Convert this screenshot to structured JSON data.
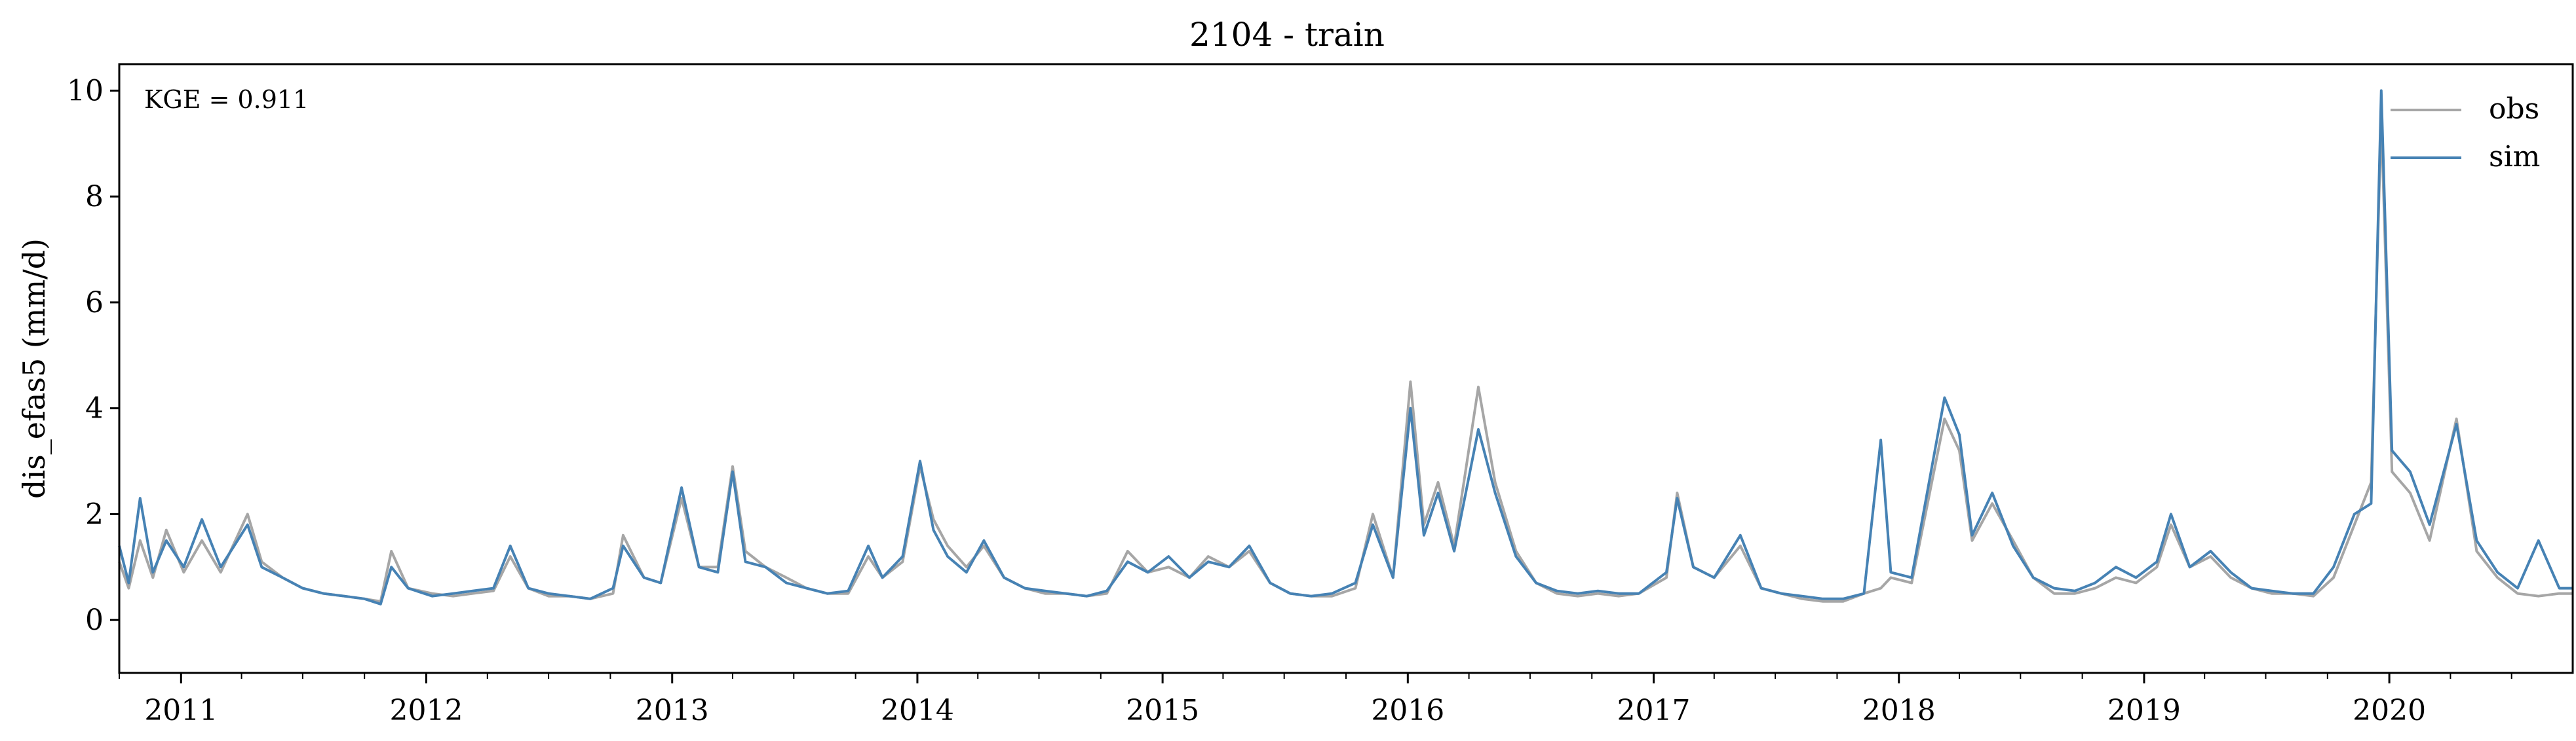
{
  "chart_data": {
    "type": "line",
    "title": "2104 - train",
    "ylabel": "dis_efas5 (mm/d)",
    "xlabel": "",
    "xlim": [
      "2010-10-01",
      "2020-09-30"
    ],
    "ylim": [
      -1,
      10.5
    ],
    "yticks": [
      0,
      2,
      4,
      6,
      8,
      10
    ],
    "yticklabels": [
      "0",
      "2",
      "4",
      "6",
      "8",
      "10"
    ],
    "xticks": [
      "2011-01-01",
      "2012-01-01",
      "2013-01-01",
      "2014-01-01",
      "2015-01-01",
      "2016-01-01",
      "2017-01-01",
      "2018-01-01",
      "2019-01-01",
      "2020-01-01"
    ],
    "xticklabels": [
      "2011",
      "2012",
      "2013",
      "2014",
      "2015",
      "2016",
      "2017",
      "2018",
      "2019",
      "2020"
    ],
    "grid": false,
    "legend_position": "top-right",
    "annotation": "KGE = 0.911",
    "series": [
      {
        "name": "obs",
        "color": "#a6a6a6",
        "points": [
          [
            "2010-10-01",
            1.1
          ],
          [
            "2010-10-15",
            0.6
          ],
          [
            "2010-11-01",
            1.5
          ],
          [
            "2010-11-20",
            0.8
          ],
          [
            "2010-12-10",
            1.7
          ],
          [
            "2011-01-05",
            0.9
          ],
          [
            "2011-02-01",
            1.5
          ],
          [
            "2011-03-01",
            0.9
          ],
          [
            "2011-04-10",
            2.0
          ],
          [
            "2011-05-01",
            1.1
          ],
          [
            "2011-06-01",
            0.8
          ],
          [
            "2011-07-01",
            0.6
          ],
          [
            "2011-08-01",
            0.5
          ],
          [
            "2011-09-01",
            0.45
          ],
          [
            "2011-10-01",
            0.4
          ],
          [
            "2011-10-25",
            0.35
          ],
          [
            "2011-11-10",
            1.3
          ],
          [
            "2011-12-05",
            0.6
          ],
          [
            "2012-01-10",
            0.5
          ],
          [
            "2012-02-10",
            0.45
          ],
          [
            "2012-03-10",
            0.5
          ],
          [
            "2012-04-10",
            0.55
          ],
          [
            "2012-05-05",
            1.2
          ],
          [
            "2012-06-01",
            0.6
          ],
          [
            "2012-07-01",
            0.45
          ],
          [
            "2012-08-01",
            0.45
          ],
          [
            "2012-09-01",
            0.4
          ],
          [
            "2012-10-05",
            0.5
          ],
          [
            "2012-10-20",
            1.6
          ],
          [
            "2012-11-20",
            0.8
          ],
          [
            "2012-12-15",
            0.7
          ],
          [
            "2013-01-15",
            2.3
          ],
          [
            "2013-02-10",
            1.0
          ],
          [
            "2013-03-10",
            1.0
          ],
          [
            "2013-04-01",
            2.9
          ],
          [
            "2013-04-20",
            1.3
          ],
          [
            "2013-05-20",
            1.0
          ],
          [
            "2013-06-20",
            0.8
          ],
          [
            "2013-07-20",
            0.6
          ],
          [
            "2013-08-20",
            0.5
          ],
          [
            "2013-09-20",
            0.5
          ],
          [
            "2013-10-20",
            1.2
          ],
          [
            "2013-11-10",
            0.8
          ],
          [
            "2013-12-10",
            1.1
          ],
          [
            "2014-01-05",
            2.9
          ],
          [
            "2014-01-25",
            1.9
          ],
          [
            "2014-02-15",
            1.4
          ],
          [
            "2014-03-15",
            1.0
          ],
          [
            "2014-04-10",
            1.4
          ],
          [
            "2014-05-10",
            0.8
          ],
          [
            "2014-06-10",
            0.6
          ],
          [
            "2014-07-10",
            0.5
          ],
          [
            "2014-08-10",
            0.5
          ],
          [
            "2014-09-10",
            0.45
          ],
          [
            "2014-10-10",
            0.5
          ],
          [
            "2014-11-10",
            1.3
          ],
          [
            "2014-12-10",
            0.9
          ],
          [
            "2015-01-10",
            1.0
          ],
          [
            "2015-02-10",
            0.8
          ],
          [
            "2015-03-10",
            1.2
          ],
          [
            "2015-04-10",
            1.0
          ],
          [
            "2015-05-10",
            1.3
          ],
          [
            "2015-06-10",
            0.7
          ],
          [
            "2015-07-10",
            0.5
          ],
          [
            "2015-08-10",
            0.45
          ],
          [
            "2015-09-10",
            0.45
          ],
          [
            "2015-10-15",
            0.6
          ],
          [
            "2015-11-10",
            2.0
          ],
          [
            "2015-12-10",
            0.8
          ],
          [
            "2016-01-05",
            4.5
          ],
          [
            "2016-01-25",
            1.8
          ],
          [
            "2016-02-15",
            2.6
          ],
          [
            "2016-03-10",
            1.4
          ],
          [
            "2016-04-15",
            4.4
          ],
          [
            "2016-05-10",
            2.6
          ],
          [
            "2016-06-10",
            1.3
          ],
          [
            "2016-07-10",
            0.7
          ],
          [
            "2016-08-10",
            0.5
          ],
          [
            "2016-09-10",
            0.45
          ],
          [
            "2016-10-10",
            0.5
          ],
          [
            "2016-11-10",
            0.45
          ],
          [
            "2016-12-10",
            0.5
          ],
          [
            "2017-01-20",
            0.8
          ],
          [
            "2017-02-05",
            2.4
          ],
          [
            "2017-03-01",
            1.0
          ],
          [
            "2017-04-01",
            0.8
          ],
          [
            "2017-05-10",
            1.4
          ],
          [
            "2017-06-10",
            0.6
          ],
          [
            "2017-07-10",
            0.5
          ],
          [
            "2017-08-10",
            0.4
          ],
          [
            "2017-09-10",
            0.35
          ],
          [
            "2017-10-10",
            0.35
          ],
          [
            "2017-11-10",
            0.5
          ],
          [
            "2017-12-05",
            0.6
          ],
          [
            "2017-12-20",
            0.8
          ],
          [
            "2018-01-20",
            0.7
          ],
          [
            "2018-03-10",
            3.8
          ],
          [
            "2018-04-01",
            3.2
          ],
          [
            "2018-04-20",
            1.5
          ],
          [
            "2018-05-20",
            2.2
          ],
          [
            "2018-06-20",
            1.5
          ],
          [
            "2018-07-20",
            0.8
          ],
          [
            "2018-08-20",
            0.5
          ],
          [
            "2018-09-20",
            0.5
          ],
          [
            "2018-10-20",
            0.6
          ],
          [
            "2018-11-20",
            0.8
          ],
          [
            "2018-12-20",
            0.7
          ],
          [
            "2019-01-20",
            1.0
          ],
          [
            "2019-02-10",
            1.8
          ],
          [
            "2019-03-10",
            1.0
          ],
          [
            "2019-04-10",
            1.2
          ],
          [
            "2019-05-10",
            0.8
          ],
          [
            "2019-06-10",
            0.6
          ],
          [
            "2019-07-10",
            0.5
          ],
          [
            "2019-08-10",
            0.5
          ],
          [
            "2019-09-10",
            0.45
          ],
          [
            "2019-10-10",
            0.8
          ],
          [
            "2019-11-10",
            1.8
          ],
          [
            "2019-12-05",
            2.6
          ],
          [
            "2019-12-20",
            9.5
          ],
          [
            "2020-01-05",
            2.8
          ],
          [
            "2020-02-01",
            2.4
          ],
          [
            "2020-03-01",
            1.5
          ],
          [
            "2020-04-10",
            3.8
          ],
          [
            "2020-05-10",
            1.3
          ],
          [
            "2020-06-10",
            0.8
          ],
          [
            "2020-07-10",
            0.5
          ],
          [
            "2020-08-10",
            0.45
          ],
          [
            "2020-09-10",
            0.5
          ],
          [
            "2020-09-30",
            0.5
          ]
        ]
      },
      {
        "name": "sim",
        "color": "#4682b4",
        "points": [
          [
            "2010-10-01",
            1.4
          ],
          [
            "2010-10-15",
            0.7
          ],
          [
            "2010-11-01",
            2.3
          ],
          [
            "2010-11-20",
            0.9
          ],
          [
            "2010-12-10",
            1.5
          ],
          [
            "2011-01-05",
            1.0
          ],
          [
            "2011-02-01",
            1.9
          ],
          [
            "2011-03-01",
            1.0
          ],
          [
            "2011-04-10",
            1.8
          ],
          [
            "2011-05-01",
            1.0
          ],
          [
            "2011-06-01",
            0.8
          ],
          [
            "2011-07-01",
            0.6
          ],
          [
            "2011-08-01",
            0.5
          ],
          [
            "2011-09-01",
            0.45
          ],
          [
            "2011-10-01",
            0.4
          ],
          [
            "2011-10-25",
            0.3
          ],
          [
            "2011-11-10",
            1.0
          ],
          [
            "2011-12-05",
            0.6
          ],
          [
            "2012-01-10",
            0.45
          ],
          [
            "2012-02-10",
            0.5
          ],
          [
            "2012-03-10",
            0.55
          ],
          [
            "2012-04-10",
            0.6
          ],
          [
            "2012-05-05",
            1.4
          ],
          [
            "2012-06-01",
            0.6
          ],
          [
            "2012-07-01",
            0.5
          ],
          [
            "2012-08-01",
            0.45
          ],
          [
            "2012-09-01",
            0.4
          ],
          [
            "2012-10-05",
            0.6
          ],
          [
            "2012-10-20",
            1.4
          ],
          [
            "2012-11-20",
            0.8
          ],
          [
            "2012-12-15",
            0.7
          ],
          [
            "2013-01-15",
            2.5
          ],
          [
            "2013-02-10",
            1.0
          ],
          [
            "2013-03-10",
            0.9
          ],
          [
            "2013-04-01",
            2.8
          ],
          [
            "2013-04-20",
            1.1
          ],
          [
            "2013-05-20",
            1.0
          ],
          [
            "2013-06-20",
            0.7
          ],
          [
            "2013-07-20",
            0.6
          ],
          [
            "2013-08-20",
            0.5
          ],
          [
            "2013-09-20",
            0.55
          ],
          [
            "2013-10-20",
            1.4
          ],
          [
            "2013-11-10",
            0.8
          ],
          [
            "2013-12-10",
            1.2
          ],
          [
            "2014-01-05",
            3.0
          ],
          [
            "2014-01-25",
            1.7
          ],
          [
            "2014-02-15",
            1.2
          ],
          [
            "2014-03-15",
            0.9
          ],
          [
            "2014-04-10",
            1.5
          ],
          [
            "2014-05-10",
            0.8
          ],
          [
            "2014-06-10",
            0.6
          ],
          [
            "2014-07-10",
            0.55
          ],
          [
            "2014-08-10",
            0.5
          ],
          [
            "2014-09-10",
            0.45
          ],
          [
            "2014-10-10",
            0.55
          ],
          [
            "2014-11-10",
            1.1
          ],
          [
            "2014-12-10",
            0.9
          ],
          [
            "2015-01-10",
            1.2
          ],
          [
            "2015-02-10",
            0.8
          ],
          [
            "2015-03-10",
            1.1
          ],
          [
            "2015-04-10",
            1.0
          ],
          [
            "2015-05-10",
            1.4
          ],
          [
            "2015-06-10",
            0.7
          ],
          [
            "2015-07-10",
            0.5
          ],
          [
            "2015-08-10",
            0.45
          ],
          [
            "2015-09-10",
            0.5
          ],
          [
            "2015-10-15",
            0.7
          ],
          [
            "2015-11-10",
            1.8
          ],
          [
            "2015-12-10",
            0.8
          ],
          [
            "2016-01-05",
            4.0
          ],
          [
            "2016-01-25",
            1.6
          ],
          [
            "2016-02-15",
            2.4
          ],
          [
            "2016-03-10",
            1.3
          ],
          [
            "2016-04-15",
            3.6
          ],
          [
            "2016-05-10",
            2.4
          ],
          [
            "2016-06-10",
            1.2
          ],
          [
            "2016-07-10",
            0.7
          ],
          [
            "2016-08-10",
            0.55
          ],
          [
            "2016-09-10",
            0.5
          ],
          [
            "2016-10-10",
            0.55
          ],
          [
            "2016-11-10",
            0.5
          ],
          [
            "2016-12-10",
            0.5
          ],
          [
            "2017-01-20",
            0.9
          ],
          [
            "2017-02-05",
            2.3
          ],
          [
            "2017-03-01",
            1.0
          ],
          [
            "2017-04-01",
            0.8
          ],
          [
            "2017-05-10",
            1.6
          ],
          [
            "2017-06-10",
            0.6
          ],
          [
            "2017-07-10",
            0.5
          ],
          [
            "2017-08-10",
            0.45
          ],
          [
            "2017-09-10",
            0.4
          ],
          [
            "2017-10-10",
            0.4
          ],
          [
            "2017-11-10",
            0.5
          ],
          [
            "2017-12-05",
            3.4
          ],
          [
            "2017-12-20",
            0.9
          ],
          [
            "2018-01-20",
            0.8
          ],
          [
            "2018-03-10",
            4.2
          ],
          [
            "2018-04-01",
            3.5
          ],
          [
            "2018-04-20",
            1.6
          ],
          [
            "2018-05-20",
            2.4
          ],
          [
            "2018-06-20",
            1.4
          ],
          [
            "2018-07-20",
            0.8
          ],
          [
            "2018-08-20",
            0.6
          ],
          [
            "2018-09-20",
            0.55
          ],
          [
            "2018-10-20",
            0.7
          ],
          [
            "2018-11-20",
            1.0
          ],
          [
            "2018-12-20",
            0.8
          ],
          [
            "2019-01-20",
            1.1
          ],
          [
            "2019-02-10",
            2.0
          ],
          [
            "2019-03-10",
            1.0
          ],
          [
            "2019-04-10",
            1.3
          ],
          [
            "2019-05-10",
            0.9
          ],
          [
            "2019-06-10",
            0.6
          ],
          [
            "2019-07-10",
            0.55
          ],
          [
            "2019-08-10",
            0.5
          ],
          [
            "2019-09-10",
            0.5
          ],
          [
            "2019-10-10",
            1.0
          ],
          [
            "2019-11-10",
            2.0
          ],
          [
            "2019-12-05",
            2.2
          ],
          [
            "2019-12-20",
            10.0
          ],
          [
            "2020-01-05",
            3.2
          ],
          [
            "2020-02-01",
            2.8
          ],
          [
            "2020-03-01",
            1.8
          ],
          [
            "2020-04-10",
            3.7
          ],
          [
            "2020-05-10",
            1.5
          ],
          [
            "2020-06-10",
            0.9
          ],
          [
            "2020-07-10",
            0.6
          ],
          [
            "2020-08-10",
            1.5
          ],
          [
            "2020-09-10",
            0.6
          ],
          [
            "2020-09-30",
            0.6
          ]
        ]
      }
    ]
  }
}
